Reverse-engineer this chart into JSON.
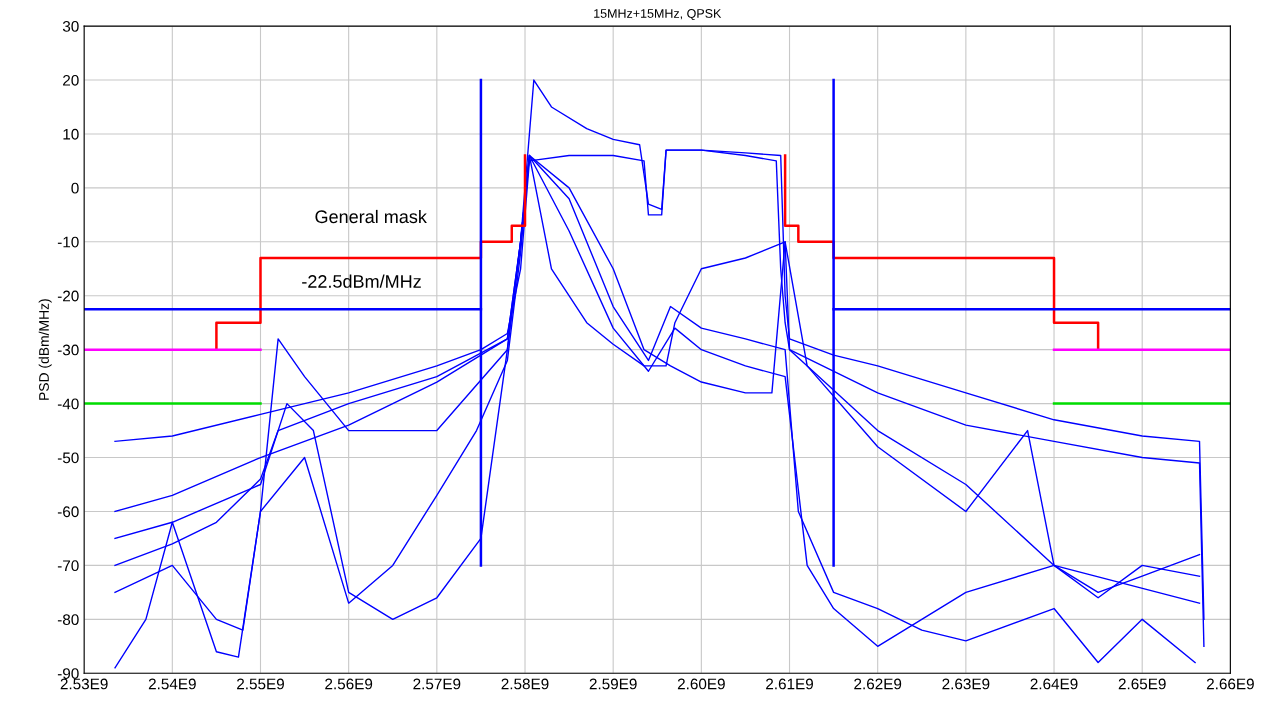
{
  "chart_data": {
    "type": "line",
    "title": "15MHz+15MHz, QPSK",
    "ylabel": "PSD (dBm/MHz)",
    "xlim": [
      2530000000.0,
      2660000000.0
    ],
    "ylim": [
      -90,
      30
    ],
    "xticks": [
      {
        "value": 2530000000.0,
        "label": "2.53E9"
      },
      {
        "value": 2540000000.0,
        "label": "2.54E9"
      },
      {
        "value": 2550000000.0,
        "label": "2.55E9"
      },
      {
        "value": 2560000000.0,
        "label": "2.56E9"
      },
      {
        "value": 2570000000.0,
        "label": "2.57E9"
      },
      {
        "value": 2580000000.0,
        "label": "2.58E9"
      },
      {
        "value": 2590000000.0,
        "label": "2.59E9"
      },
      {
        "value": 2600000000.0,
        "label": "2.60E9"
      },
      {
        "value": 2610000000.0,
        "label": "2.61E9"
      },
      {
        "value": 2620000000.0,
        "label": "2.62E9"
      },
      {
        "value": 2630000000.0,
        "label": "2.63E9"
      },
      {
        "value": 2640000000.0,
        "label": "2.64E9"
      },
      {
        "value": 2650000000.0,
        "label": "2.65E9"
      },
      {
        "value": 2660000000.0,
        "label": "2.66E9"
      }
    ],
    "yticks": [
      -90,
      -80,
      -70,
      -60,
      -50,
      -40,
      -30,
      -20,
      -10,
      0,
      10,
      20,
      30
    ],
    "grid": true,
    "marker": "none",
    "line_style": "solid",
    "annotations": [
      "General mask",
      "-22.5dBm/MHz"
    ],
    "series": [
      {
        "color": "#0000ff",
        "x": [
          2533500000.0,
          2540000000.0,
          2550000000.0,
          2560000000.0,
          2570000000.0,
          2575000000.0,
          2578000000.0,
          2579500000.0,
          2580500000.0,
          2585000000.0,
          2590000000.0,
          2593500000.0,
          2594000000.0,
          2595500000.0,
          2596000000.0,
          2600000000.0,
          2605000000.0,
          2609000000.0,
          2609500000.0,
          2610000000.0,
          2615000000.0,
          2620000000.0,
          2630000000.0,
          2640000000.0,
          2650000000.0,
          2656500000.0,
          2657000000.0
        ],
        "values": [
          -47,
          -46,
          -42,
          -38,
          -33,
          -30,
          -27,
          -15,
          5,
          6,
          6,
          5,
          -5,
          -5,
          7,
          7,
          6.5,
          6,
          -20,
          -28,
          -31,
          -33,
          -38,
          -43,
          -46,
          -47,
          -80
        ]
      },
      {
        "color": "#0000ff",
        "x": [
          2533500000.0,
          2540000000.0,
          2550000000.0,
          2560000000.0,
          2570000000.0,
          2578000000.0,
          2579500000.0,
          2581000000.0,
          2583000000.0,
          2587000000.0,
          2590000000.0,
          2593000000.0,
          2594000000.0,
          2595500000.0,
          2596000000.0,
          2600000000.0,
          2605000000.0,
          2608500000.0,
          2609000000.0,
          2609500000.0,
          2610000000.0,
          2620000000.0,
          2630000000.0,
          2640000000.0,
          2650000000.0,
          2656500000.0,
          2657000000.0
        ],
        "values": [
          -60,
          -57,
          -50,
          -44,
          -36,
          -28,
          -10,
          20,
          15,
          11,
          9,
          8,
          -3,
          -4,
          7,
          7,
          6,
          5,
          -15,
          -25,
          -30,
          -38,
          -44,
          -47,
          -50,
          -51,
          -85
        ]
      },
      {
        "color": "#0000ff",
        "x": [
          2533500000.0,
          2540000000.0,
          2545000000.0,
          2550000000.0,
          2552000000.0,
          2560000000.0,
          2570000000.0,
          2578000000.0,
          2579500000.0,
          2580500000.0,
          2583000000.0,
          2587000000.0,
          2590000000.0,
          2593500000.0,
          2596000000.0,
          2597000000.0,
          2600000000.0,
          2605000000.0,
          2609500000.0,
          2610000000.0,
          2620000000.0,
          2630000000.0,
          2640000000.0,
          2645000000.0,
          2650000000.0,
          2656500000.0
        ],
        "values": [
          -70,
          -66,
          -62,
          -54,
          -45,
          -40,
          -35,
          -28,
          -10,
          6,
          -15,
          -25,
          -29,
          -33,
          -33,
          -25,
          -15,
          -13,
          -10,
          -30,
          -45,
          -55,
          -70,
          -75,
          -72,
          -68
        ]
      },
      {
        "color": "#0000ff",
        "x": [
          2533500000.0,
          2537000000.0,
          2540000000.0,
          2545000000.0,
          2547500000.0,
          2550000000.0,
          2552000000.0,
          2555000000.0,
          2560000000.0,
          2570000000.0,
          2578000000.0,
          2579500000.0,
          2580500000.0,
          2585000000.0,
          2590000000.0,
          2593500000.0,
          2596500000.0,
          2600000000.0,
          2605000000.0,
          2608000000.0,
          2609500000.0,
          2612000000.0,
          2620000000.0,
          2630000000.0,
          2637000000.0,
          2640000000.0,
          2656500000.0
        ],
        "values": [
          -89,
          -80,
          -62,
          -86,
          -87,
          -60,
          -28,
          -35,
          -45,
          -45,
          -30,
          -10,
          6,
          0,
          -15,
          -30,
          -33,
          -36,
          -38,
          -38,
          -10,
          -33,
          -48,
          -60,
          -45,
          -70,
          -77
        ]
      },
      {
        "color": "#0000ff",
        "x": [
          2533500000.0,
          2540000000.0,
          2545000000.0,
          2548000000.0,
          2550000000.0,
          2555000000.0,
          2560000000.0,
          2565000000.0,
          2570000000.0,
          2574500000.0,
          2578000000.0,
          2579500000.0,
          2580500000.0,
          2585000000.0,
          2590000000.0,
          2594000000.0,
          2596500000.0,
          2600000000.0,
          2605000000.0,
          2609500000.0,
          2611000000.0,
          2615000000.0,
          2620000000.0,
          2625000000.0,
          2630000000.0,
          2640000000.0,
          2645000000.0,
          2650000000.0,
          2656000000.0
        ],
        "values": [
          -75,
          -70,
          -80,
          -82,
          -60,
          -50,
          -77,
          -70,
          -57,
          -45,
          -32,
          -12,
          6,
          -2,
          -22,
          -32,
          -22,
          -26,
          -28,
          -30,
          -60,
          -75,
          -78,
          -82,
          -84,
          -78,
          -88,
          -80,
          -88
        ]
      },
      {
        "color": "#0000ff",
        "x": [
          2533500000.0,
          2540000000.0,
          2550000000.0,
          2553000000.0,
          2556000000.0,
          2560000000.0,
          2565000000.0,
          2570000000.0,
          2575000000.0,
          2578000000.0,
          2579500000.0,
          2580500000.0,
          2585000000.0,
          2590000000.0,
          2594000000.0,
          2597000000.0,
          2600000000.0,
          2605000000.0,
          2609500000.0,
          2612000000.0,
          2615000000.0,
          2620000000.0,
          2625000000.0,
          2630000000.0,
          2640000000.0,
          2645000000.0,
          2650000000.0,
          2656500000.0
        ],
        "values": [
          -65,
          -62,
          -55,
          -40,
          -45,
          -75,
          -80,
          -76,
          -65,
          -30,
          -10,
          6,
          -8,
          -26,
          -34,
          -26,
          -30,
          -33,
          -35,
          -70,
          -78,
          -85,
          -80,
          -75,
          -70,
          -76,
          -70,
          -72
        ]
      },
      {
        "color": "#ff0000",
        "x": [
          2545000000.0,
          2545000000.0,
          2550000000.0,
          2550000000.0,
          2575000000.0,
          2575000000.0,
          2578500000.0,
          2578500000.0,
          2580000000.0,
          2580000000.0
        ],
        "values": [
          -30,
          -25,
          -25,
          -13,
          -13,
          -10,
          -10,
          -7,
          -7,
          6
        ]
      },
      {
        "color": "#ff0000",
        "x": [
          2609500000.0,
          2609500000.0,
          2611000000.0,
          2611000000.0,
          2615000000.0,
          2615000000.0,
          2640000000.0,
          2640000000.0,
          2645000000.0,
          2645000000.0
        ],
        "values": [
          6,
          -7,
          -7,
          -10,
          -10,
          -13,
          -13,
          -25,
          -25,
          -30
        ]
      },
      {
        "color": "#0000ff",
        "x": [
          2530000000.0,
          2575000000.0
        ],
        "values": [
          -22.5,
          -22.5
        ]
      },
      {
        "color": "#0000ff",
        "x": [
          2615000000.0,
          2660000000.0
        ],
        "values": [
          -22.5,
          -22.5
        ]
      },
      {
        "color": "#0000ff",
        "x": [
          2575000000.0,
          2575000000.0
        ],
        "values": [
          -70,
          20
        ]
      },
      {
        "color": "#0000ff",
        "x": [
          2615000000.0,
          2615000000.0
        ],
        "values": [
          20,
          -70
        ]
      },
      {
        "color": "#ff00ff",
        "x": [
          2530000000.0,
          2550000000.0
        ],
        "values": [
          -30,
          -30
        ]
      },
      {
        "color": "#ff00ff",
        "x": [
          2640000000.0,
          2660000000.0
        ],
        "values": [
          -30,
          -30
        ]
      },
      {
        "color": "#00dd00",
        "x": [
          2530000000.0,
          2550000000.0
        ],
        "values": [
          -40,
          -40
        ]
      },
      {
        "color": "#00dd00",
        "x": [
          2640000000.0,
          2660000000.0
        ],
        "values": [
          -40,
          -40
        ]
      }
    ]
  }
}
